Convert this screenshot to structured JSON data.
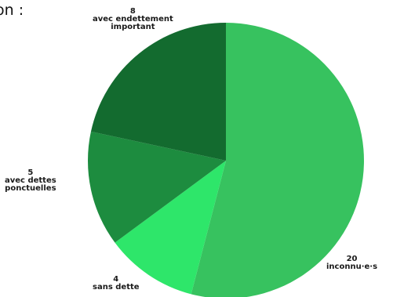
{
  "fragment_text": "on :",
  "chart_data": {
    "type": "pie",
    "title": "",
    "start_angle_deg": 0,
    "direction": "clockwise",
    "slices": [
      {
        "value": 20,
        "label": "inconnu·e·s",
        "color": "#37c25f"
      },
      {
        "value": 4,
        "label": "sans dette",
        "color": "#2ee66a"
      },
      {
        "value": 5,
        "label": "avec dettes ponctuelles",
        "color": "#1d8c3f"
      },
      {
        "value": 8,
        "label": "avec endettement important",
        "color": "#136b2f"
      }
    ],
    "label_lines": [
      [
        "20",
        "inconnu·e·s"
      ],
      [
        "4",
        "sans dette"
      ],
      [
        "5",
        "avec dettes",
        "ponctuelles"
      ],
      [
        "8",
        "avec endettement",
        "important"
      ]
    ]
  }
}
